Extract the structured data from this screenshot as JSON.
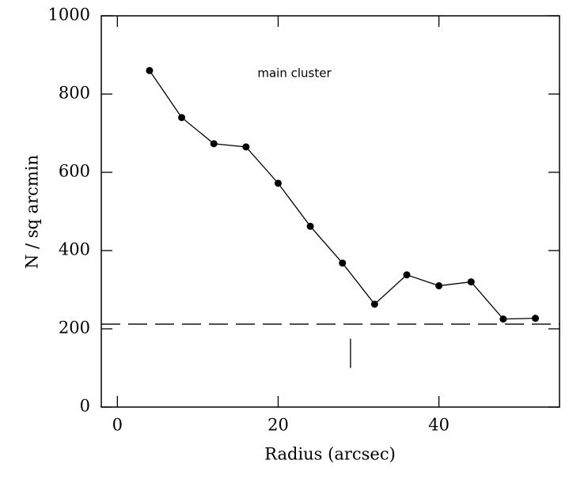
{
  "chart_data": {
    "type": "line",
    "annotation": "main cluster",
    "x_label": "Radius (arcsec)",
    "y_label": "N / sq arcmin",
    "x": [
      4,
      8,
      12,
      16,
      20,
      24,
      28,
      32,
      36,
      40,
      44,
      48,
      52
    ],
    "values": [
      860,
      740,
      673,
      665,
      572,
      462,
      368,
      263,
      338,
      310,
      320,
      225,
      227
    ],
    "color": "#000000",
    "reference_line": 212,
    "marker": {
      "x": 29,
      "y": [
        100,
        175
      ]
    },
    "xlim": [
      -2,
      55
    ],
    "ylim": [
      0,
      1000
    ],
    "xticks": [
      0,
      20,
      40
    ],
    "yticks": [
      0,
      200,
      400,
      600,
      800,
      1000
    ]
  }
}
